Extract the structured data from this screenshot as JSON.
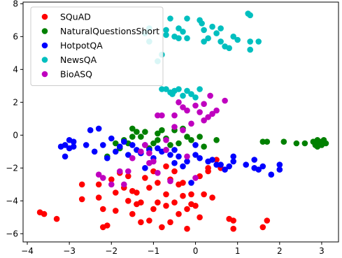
{
  "chart_data": {
    "type": "scatter",
    "title": "",
    "xlabel": "",
    "ylabel": "",
    "xlim": [
      -4.1,
      3.4
    ],
    "ylim": [
      -6.5,
      8.1
    ],
    "grid": false,
    "legend_position": "top-left",
    "xticks": [
      -4,
      -3,
      -2,
      -1,
      0,
      1,
      2,
      3
    ],
    "yticks": [
      -6,
      -4,
      -2,
      0,
      2,
      4,
      6,
      8
    ],
    "series": [
      {
        "name": "SQuAD",
        "color": "#ff0000",
        "points": [
          [
            -3.7,
            -4.7
          ],
          [
            -3.6,
            -4.8
          ],
          [
            -3.3,
            -5.1
          ],
          [
            -2.7,
            -3.0
          ],
          [
            -2.7,
            -3.9
          ],
          [
            -2.3,
            -3.0
          ],
          [
            -2.3,
            -3.8
          ],
          [
            -2.2,
            -4.5
          ],
          [
            -2.2,
            -5.6
          ],
          [
            -2.1,
            -5.5
          ],
          [
            -2.0,
            -2.7
          ],
          [
            -1.9,
            -4.6
          ],
          [
            -1.9,
            -3.5
          ],
          [
            -1.8,
            -2.3
          ],
          [
            -1.7,
            -3.2
          ],
          [
            -1.6,
            -2.5
          ],
          [
            -1.6,
            -4.0
          ],
          [
            -1.5,
            -3.4
          ],
          [
            -1.5,
            -4.8
          ],
          [
            -1.4,
            -3.5
          ],
          [
            -1.4,
            -4.2
          ],
          [
            -1.3,
            -5.3
          ],
          [
            -1.3,
            -4.1
          ],
          [
            -1.2,
            -2.6
          ],
          [
            -1.1,
            -5.2
          ],
          [
            -1.1,
            -3.2
          ],
          [
            -1.0,
            -2.2
          ],
          [
            -1.0,
            -4.5
          ],
          [
            -0.9,
            -2.9
          ],
          [
            -0.9,
            -4.1
          ],
          [
            -0.8,
            -5.6
          ],
          [
            -0.7,
            -1.9
          ],
          [
            -0.7,
            -3.6
          ],
          [
            -0.7,
            -4.3
          ],
          [
            -0.6,
            -2.7
          ],
          [
            -0.6,
            -5.3
          ],
          [
            -0.5,
            -4.1
          ],
          [
            -0.5,
            -2.2
          ],
          [
            -0.4,
            -3.0
          ],
          [
            -0.4,
            -4.8
          ],
          [
            -0.3,
            -3.7
          ],
          [
            -0.3,
            -2.9
          ],
          [
            -0.2,
            -5.7
          ],
          [
            -0.2,
            -4.5
          ],
          [
            -0.1,
            -3.6
          ],
          [
            -0.1,
            -4.2
          ],
          [
            0.0,
            -4.3
          ],
          [
            0.1,
            -2.5
          ],
          [
            0.1,
            -5.0
          ],
          [
            0.2,
            -3.6
          ],
          [
            0.3,
            -2.2
          ],
          [
            0.3,
            -2.0
          ],
          [
            0.4,
            -3.8
          ],
          [
            0.5,
            -1.5
          ],
          [
            0.6,
            -2.0
          ],
          [
            0.8,
            -5.1
          ],
          [
            0.9,
            -5.2
          ],
          [
            0.9,
            -5.7
          ],
          [
            1.6,
            -5.6
          ],
          [
            1.7,
            -5.2
          ]
        ]
      },
      {
        "name": "NaturalQuestionsShort",
        "color": "#008000",
        "points": [
          [
            -2.1,
            -1.3
          ],
          [
            -1.9,
            -0.5
          ],
          [
            -1.8,
            -0.8
          ],
          [
            -1.7,
            -0.3
          ],
          [
            -1.6,
            -0.5
          ],
          [
            -1.5,
            -0.1
          ],
          [
            -1.5,
            0.4
          ],
          [
            -1.4,
            0.2
          ],
          [
            -1.3,
            -0.1
          ],
          [
            -1.2,
            0.2
          ],
          [
            -1.1,
            -0.8
          ],
          [
            -1.0,
            -0.5
          ],
          [
            -0.9,
            -0.3
          ],
          [
            -0.9,
            0.1
          ],
          [
            -0.8,
            0.3
          ],
          [
            -0.7,
            -0.2
          ],
          [
            -0.6,
            -0.6
          ],
          [
            -0.5,
            0.3
          ],
          [
            -0.4,
            -0.5
          ],
          [
            -0.3,
            0.4
          ],
          [
            -0.2,
            -0.1
          ],
          [
            -0.1,
            -0.3
          ],
          [
            0.1,
            -0.1
          ],
          [
            0.2,
            -0.7
          ],
          [
            0.5,
            -0.3
          ],
          [
            1.6,
            -0.4
          ],
          [
            1.7,
            -0.4
          ],
          [
            2.1,
            -0.4
          ],
          [
            2.4,
            -0.5
          ],
          [
            2.6,
            -0.5
          ],
          [
            2.8,
            -0.4
          ],
          [
            2.85,
            -0.6
          ],
          [
            2.9,
            -0.3
          ],
          [
            2.9,
            -0.7
          ],
          [
            2.95,
            -0.5
          ],
          [
            3.0,
            -0.6
          ],
          [
            3.05,
            -0.3
          ],
          [
            3.1,
            -0.5
          ],
          [
            3.0,
            -0.4
          ]
        ]
      },
      {
        "name": "HotpotQA",
        "color": "#0000ff",
        "points": [
          [
            -3.2,
            -0.7
          ],
          [
            -3.1,
            -0.6
          ],
          [
            -3.1,
            -1.3
          ],
          [
            -3.0,
            -0.8
          ],
          [
            -3.0,
            -0.3
          ],
          [
            -2.9,
            -0.4
          ],
          [
            -2.9,
            -0.7
          ],
          [
            -2.6,
            -0.6
          ],
          [
            -2.5,
            0.3
          ],
          [
            -2.4,
            -1.0
          ],
          [
            -2.3,
            0.4
          ],
          [
            -2.2,
            -0.6
          ],
          [
            -2.1,
            -1.4
          ],
          [
            -2.0,
            -0.2
          ],
          [
            -1.9,
            -1.0
          ],
          [
            -1.8,
            -0.7
          ],
          [
            -1.7,
            -0.4
          ],
          [
            -1.6,
            -1.2
          ],
          [
            -1.5,
            -0.6
          ],
          [
            -1.4,
            -0.9
          ],
          [
            -1.3,
            -1.1
          ],
          [
            -1.2,
            -0.6
          ],
          [
            -1.1,
            -0.9
          ],
          [
            -1.0,
            -1.4
          ],
          [
            -0.9,
            -0.8
          ],
          [
            -0.8,
            -1.0
          ],
          [
            -0.7,
            -0.9
          ],
          [
            -0.6,
            -1.2
          ],
          [
            -0.5,
            -1.7
          ],
          [
            -0.5,
            -0.9
          ],
          [
            -0.4,
            -1.3
          ],
          [
            -0.3,
            -1.9
          ],
          [
            -0.2,
            -1.6
          ],
          [
            -0.1,
            -2.9
          ],
          [
            0.0,
            -1.2
          ],
          [
            0.0,
            -0.6
          ],
          [
            0.1,
            -1.4
          ],
          [
            0.3,
            -1.6
          ],
          [
            0.4,
            -1.5
          ],
          [
            0.5,
            -1.8
          ],
          [
            0.6,
            -1.8
          ],
          [
            0.7,
            -2.1
          ],
          [
            0.8,
            -1.9
          ],
          [
            0.9,
            -1.3
          ],
          [
            0.9,
            -1.6
          ],
          [
            1.2,
            -1.8
          ],
          [
            1.4,
            -1.5
          ],
          [
            1.4,
            -2.0
          ],
          [
            1.5,
            -2.1
          ],
          [
            1.6,
            -1.9
          ],
          [
            1.8,
            -2.4
          ],
          [
            2.0,
            -2.1
          ],
          [
            2.0,
            -1.8
          ],
          [
            -1.2,
            -2.0
          ]
        ]
      },
      {
        "name": "NewsQA",
        "color": "#00bfbf",
        "points": [
          [
            -1.2,
            6.2
          ],
          [
            -1.1,
            6.5
          ],
          [
            -1.1,
            5.7
          ],
          [
            -0.9,
            4.5
          ],
          [
            -0.8,
            4.9
          ],
          [
            -0.7,
            6.1
          ],
          [
            -0.7,
            6.4
          ],
          [
            -0.6,
            7.1
          ],
          [
            -0.5,
            6.0
          ],
          [
            -0.4,
            6.5
          ],
          [
            -0.4,
            5.9
          ],
          [
            -0.3,
            6.3
          ],
          [
            -0.2,
            7.1
          ],
          [
            -0.2,
            5.9
          ],
          [
            0.1,
            7.0
          ],
          [
            0.15,
            6.8
          ],
          [
            0.2,
            6.4
          ],
          [
            0.2,
            5.7
          ],
          [
            0.3,
            5.9
          ],
          [
            0.4,
            6.6
          ],
          [
            0.5,
            6.2
          ],
          [
            0.6,
            6.5
          ],
          [
            0.6,
            5.7
          ],
          [
            0.7,
            5.4
          ],
          [
            0.8,
            5.3
          ],
          [
            0.9,
            6.0
          ],
          [
            1.0,
            5.8
          ],
          [
            1.25,
            7.4
          ],
          [
            1.3,
            7.3
          ],
          [
            1.3,
            5.7
          ],
          [
            1.3,
            5.2
          ],
          [
            1.5,
            5.7
          ],
          [
            -0.8,
            2.8
          ],
          [
            -0.7,
            2.8
          ],
          [
            -0.6,
            2.6
          ],
          [
            -0.5,
            2.7
          ],
          [
            -0.4,
            2.8
          ],
          [
            -0.3,
            2.4
          ],
          [
            -0.2,
            2.7
          ],
          [
            -0.1,
            2.5
          ],
          [
            0.0,
            2.3
          ],
          [
            0.1,
            2.8
          ],
          [
            -0.55,
            2.5
          ]
        ]
      },
      {
        "name": "BioASQ",
        "color": "#bf00bf",
        "points": [
          [
            -2.3,
            -2.4
          ],
          [
            -2.2,
            -2.6
          ],
          [
            -2.0,
            -3.0
          ],
          [
            -1.8,
            -2.2
          ],
          [
            -1.6,
            -2.2
          ],
          [
            -1.5,
            -1.4
          ],
          [
            -1.3,
            -1.0
          ],
          [
            -1.2,
            -0.6
          ],
          [
            -1.1,
            -1.1
          ],
          [
            -1.0,
            -1.6
          ],
          [
            -0.9,
            1.2
          ],
          [
            -0.9,
            -2.3
          ],
          [
            -0.8,
            1.2
          ],
          [
            -0.7,
            -0.9
          ],
          [
            -0.6,
            -2.8
          ],
          [
            -0.5,
            0.5
          ],
          [
            -0.5,
            1.2
          ],
          [
            -0.4,
            2.0
          ],
          [
            -0.3,
            1.7
          ],
          [
            -0.3,
            0.3
          ],
          [
            -0.2,
            1.5
          ],
          [
            -0.2,
            -1.3
          ],
          [
            -0.1,
            0.7
          ],
          [
            0.0,
            1.8
          ],
          [
            0.0,
            -2.6
          ],
          [
            0.1,
            1.4
          ],
          [
            0.2,
            0.9
          ],
          [
            0.2,
            1.9
          ],
          [
            0.3,
            1.1
          ],
          [
            0.35,
            2.4
          ],
          [
            0.4,
            1.3
          ],
          [
            0.5,
            1.5
          ],
          [
            0.7,
            2.1
          ],
          [
            -1.7,
            -3.0
          ],
          [
            -1.1,
            -1.7
          ],
          [
            -0.7,
            -0.3
          ]
        ]
      }
    ]
  }
}
